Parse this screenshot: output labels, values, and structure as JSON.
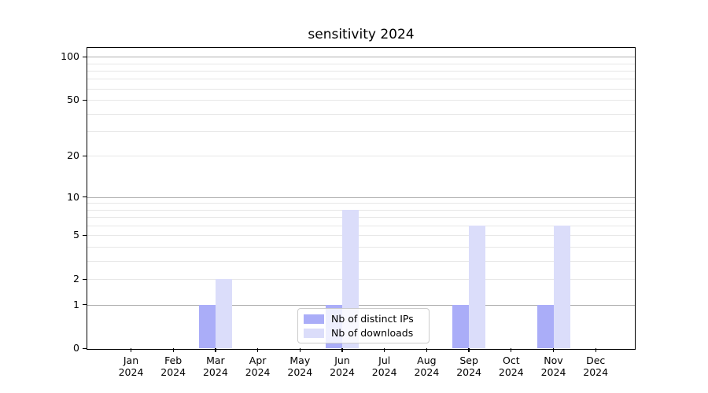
{
  "title": "sensitivity 2024",
  "chart_data": {
    "type": "bar",
    "title": "sensitivity 2024",
    "xlabel": "",
    "ylabel": "",
    "categories": [
      "Jan",
      "Feb",
      "Mar",
      "Apr",
      "May",
      "Jun",
      "Jul",
      "Aug",
      "Sep",
      "Oct",
      "Nov",
      "Dec"
    ],
    "category_year": "2024",
    "series": [
      {
        "name": "Nb of distinct IPs",
        "color": "#aaadf8",
        "values": [
          0,
          0,
          1,
          0,
          0,
          1,
          0,
          0,
          1,
          0,
          1,
          0
        ]
      },
      {
        "name": "Nb of downloads",
        "color": "#dbddfa",
        "values": [
          0,
          0,
          2,
          0,
          0,
          8,
          0,
          0,
          6,
          0,
          6,
          0
        ]
      }
    ],
    "yscale": "log1p",
    "ylim": [
      0,
      115
    ],
    "yticks": [
      0,
      1,
      2,
      5,
      10,
      20,
      50,
      100
    ],
    "gridlines": {
      "major": [
        1,
        10,
        100
      ],
      "minor": [
        2,
        3,
        4,
        5,
        6,
        7,
        8,
        9,
        20,
        30,
        40,
        50,
        60,
        70,
        80,
        90
      ]
    },
    "grid": true,
    "legend_position": "lower center"
  },
  "colors": {
    "major_grid": "#b0b0b0",
    "minor_grid": "#e7e7e7",
    "axis": "#000000",
    "background": "#ffffff",
    "series_dark": "#aaadf8",
    "series_light": "#dbddfa"
  }
}
